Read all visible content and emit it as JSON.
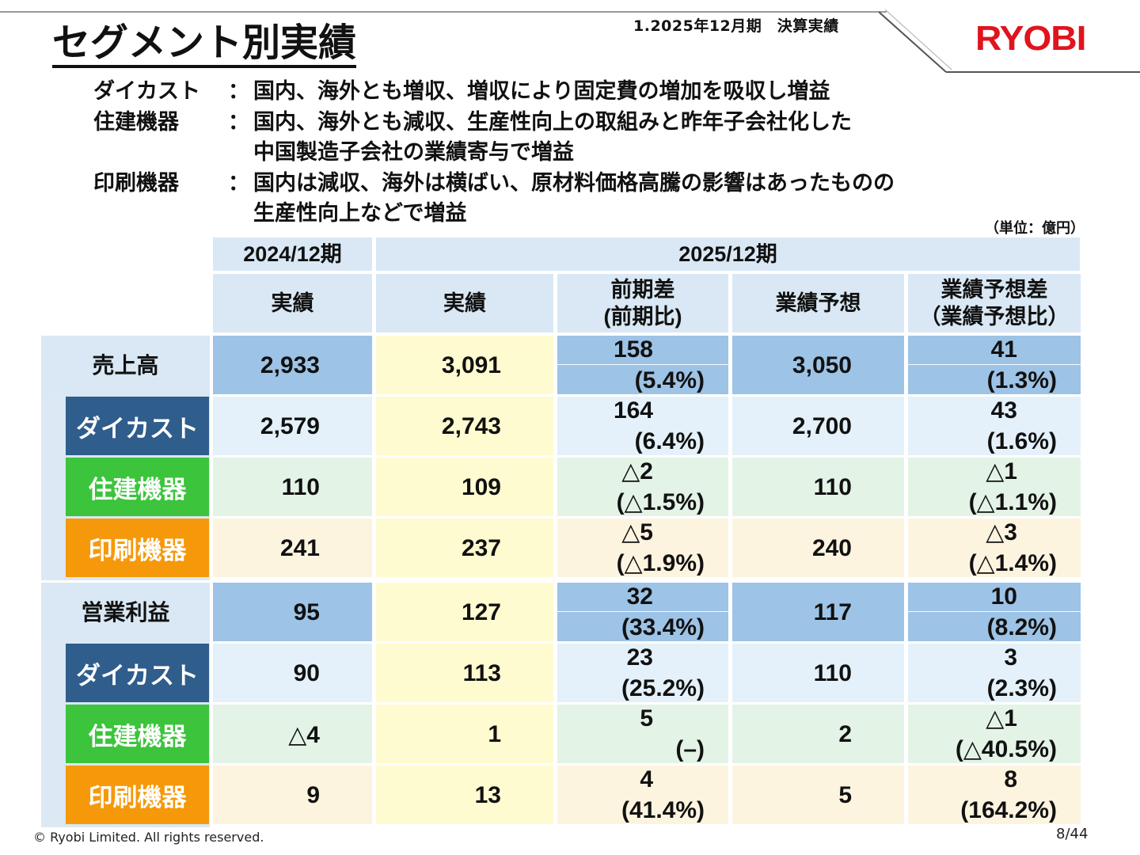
{
  "header": {
    "section": "1.2025年12月期　決算実績",
    "title": "セグメント別実績",
    "logo": "RYOBI"
  },
  "summary": [
    {
      "label": "ダイカスト",
      "colon": "：",
      "lines": [
        "国内、海外とも増収、増収により固定費の増加を吸収し増益"
      ]
    },
    {
      "label": "住建機器",
      "colon": "：",
      "lines": [
        "国内、海外とも減収、生産性向上の取組みと昨年子会社化した",
        "中国製造子会社の業績寄与で増益"
      ]
    },
    {
      "label": "印刷機器",
      "colon": "：",
      "lines": [
        "国内は減収、海外は横ばい、原材料価格高騰の影響はあったものの",
        "生産性向上などで増益"
      ]
    }
  ],
  "unit": "（単位：億円）",
  "table": {
    "period_2024": "2024/12期",
    "period_2025": "2025/12期",
    "columns": [
      "実績",
      "実績",
      "前期差\n(前期比)",
      "業績予想",
      "業績予想差\n（業績予想比）"
    ],
    "groups": [
      {
        "label": "売上高",
        "total": {
          "prev": "2,933",
          "actual": "3,091",
          "diff": "158",
          "diff_pct": "(5.4%)",
          "forecast": "3,050",
          "fdiff": "41",
          "fdiff_pct": "(1.3%)"
        },
        "rows": [
          {
            "segment": "ダイカスト",
            "prev": "2,579",
            "actual": "2,743",
            "diff": "164",
            "diff_pct": "(6.4%)",
            "forecast": "2,700",
            "fdiff": "43",
            "fdiff_pct": "(1.6%)"
          },
          {
            "segment": "住建機器",
            "prev": "110",
            "actual": "109",
            "diff": "△2",
            "diff_pct": "(△1.5%)",
            "forecast": "110",
            "fdiff": "△1",
            "fdiff_pct": "(△1.1%)"
          },
          {
            "segment": "印刷機器",
            "prev": "241",
            "actual": "237",
            "diff": "△5",
            "diff_pct": "(△1.9%)",
            "forecast": "240",
            "fdiff": "△3",
            "fdiff_pct": "(△1.4%)"
          }
        ]
      },
      {
        "label": "営業利益",
        "total": {
          "prev": "95",
          "actual": "127",
          "diff": "32",
          "diff_pct": "(33.4%)",
          "forecast": "117",
          "fdiff": "10",
          "fdiff_pct": "(8.2%)"
        },
        "rows": [
          {
            "segment": "ダイカスト",
            "prev": "90",
            "actual": "113",
            "diff": "23",
            "diff_pct": "(25.2%)",
            "forecast": "110",
            "fdiff": "3",
            "fdiff_pct": "(2.3%)"
          },
          {
            "segment": "住建機器",
            "prev": "△4",
            "actual": "1",
            "diff": "5",
            "diff_pct": "(–)",
            "forecast": "2",
            "fdiff": "△1",
            "fdiff_pct": "(△40.5%)"
          },
          {
            "segment": "印刷機器",
            "prev": "9",
            "actual": "13",
            "diff": "4",
            "diff_pct": "(41.4%)",
            "forecast": "5",
            "fdiff": "8",
            "fdiff_pct": "(164.2%)"
          }
        ]
      }
    ]
  },
  "colors": {
    "header_bg": "#d9e8f4",
    "total_row": "#9dc3e6",
    "actual_col": "#fffbd0",
    "diecast_seg": "#2f5d8c",
    "diecast_row": "#e4f1fa",
    "housing_seg": "#3cc43c",
    "housing_row": "#e3f3e6",
    "printing_seg": "#f5990a",
    "printing_row": "#fdf4e0"
  },
  "footer": {
    "copyright": "© Ryobi Limited. All rights reserved.",
    "page": "8/44"
  }
}
